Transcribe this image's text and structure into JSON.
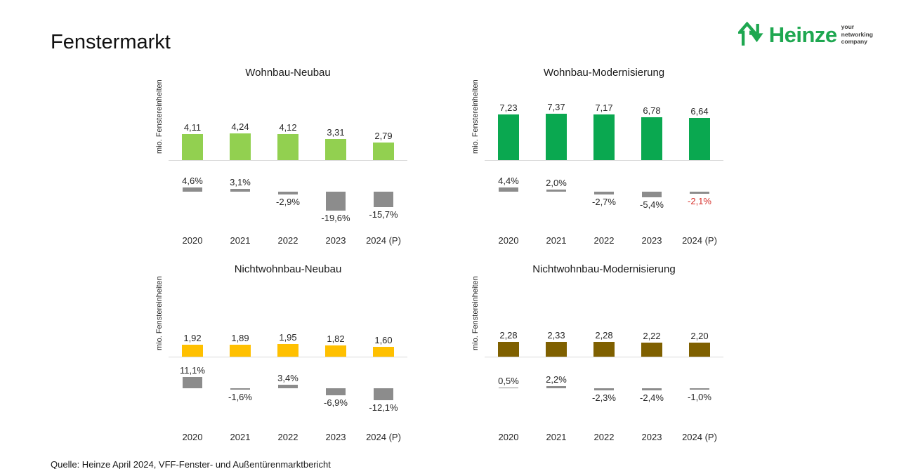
{
  "page": {
    "title": "Fenstermarkt",
    "source_note": "Quelle: Heinze April 2024, VFF-Fenster- und Außentürenmarktbericht"
  },
  "logo": {
    "brand": "Heinze",
    "tagline": [
      "your",
      "networking",
      "company"
    ],
    "color": "#1EA750"
  },
  "colors": {
    "pct_bar": "#8C8C8C",
    "axis_line": "#D9D9D9",
    "negative_highlight": "#D62F2A",
    "text": "#262626"
  },
  "chart_data": [
    {
      "type": "bar",
      "title": "Wohnbau-Neubau",
      "ylabel": "mio. Fenstereinheiten",
      "categories": [
        "2020",
        "2021",
        "2022",
        "2023",
        "2024 (P)"
      ],
      "values": [
        4.11,
        4.24,
        4.12,
        3.31,
        2.79
      ],
      "value_labels": [
        "4,11",
        "4,24",
        "4,12",
        "3,31",
        "2,79"
      ],
      "pct_change_values": [
        4.6,
        3.1,
        -2.9,
        -19.6,
        -15.7
      ],
      "pct_change_labels": [
        "4,6%",
        "3,1%",
        "-2,9%",
        "-19,6%",
        "-15,7%"
      ],
      "bar_color": "#92D050",
      "pct_label_colors": [
        null,
        null,
        null,
        null,
        null
      ]
    },
    {
      "type": "bar",
      "title": "Wohnbau-Modernisierung",
      "ylabel": "mio. Fenstereinheiten",
      "categories": [
        "2020",
        "2021",
        "2022",
        "2023",
        "2024 (P)"
      ],
      "values": [
        7.23,
        7.37,
        7.17,
        6.78,
        6.64
      ],
      "value_labels": [
        "7,23",
        "7,37",
        "7,17",
        "6,78",
        "6,64"
      ],
      "pct_change_values": [
        4.4,
        2.0,
        -2.7,
        -5.4,
        -2.1
      ],
      "pct_change_labels": [
        "4,4%",
        "2,0%",
        "-2,7%",
        "-5,4%",
        "-2,1%"
      ],
      "bar_color": "#0AA850",
      "pct_label_colors": [
        null,
        null,
        null,
        null,
        "#D62F2A"
      ]
    },
    {
      "type": "bar",
      "title": "Nichtwohnbau-Neubau",
      "ylabel": "mio. Fenstereinheiten",
      "categories": [
        "2020",
        "2021",
        "2022",
        "2023",
        "2024 (P)"
      ],
      "values": [
        1.92,
        1.89,
        1.95,
        1.82,
        1.6
      ],
      "value_labels": [
        "1,92",
        "1,89",
        "1,95",
        "1,82",
        "1,60"
      ],
      "pct_change_values": [
        11.1,
        -1.6,
        3.4,
        -6.9,
        -12.1
      ],
      "pct_change_labels": [
        "11,1%",
        "-1,6%",
        "3,4%",
        "-6,9%",
        "-12,1%"
      ],
      "bar_color": "#FFC000",
      "pct_label_colors": [
        null,
        null,
        null,
        null,
        null
      ]
    },
    {
      "type": "bar",
      "title": "Nichtwohnbau-Modernisierung",
      "ylabel": "mio. Fenstereinheiten",
      "categories": [
        "2020",
        "2021",
        "2022",
        "2023",
        "2024 (P)"
      ],
      "values": [
        2.28,
        2.33,
        2.28,
        2.22,
        2.2
      ],
      "value_labels": [
        "2,28",
        "2,33",
        "2,28",
        "2,22",
        "2,20"
      ],
      "pct_change_values": [
        0.5,
        2.2,
        -2.3,
        -2.4,
        -1.0
      ],
      "pct_change_labels": [
        "0,5%",
        "2,2%",
        "-2,3%",
        "-2,4%",
        "-1,0%"
      ],
      "bar_color": "#7F6000",
      "pct_label_colors": [
        null,
        null,
        null,
        null,
        null
      ]
    }
  ]
}
